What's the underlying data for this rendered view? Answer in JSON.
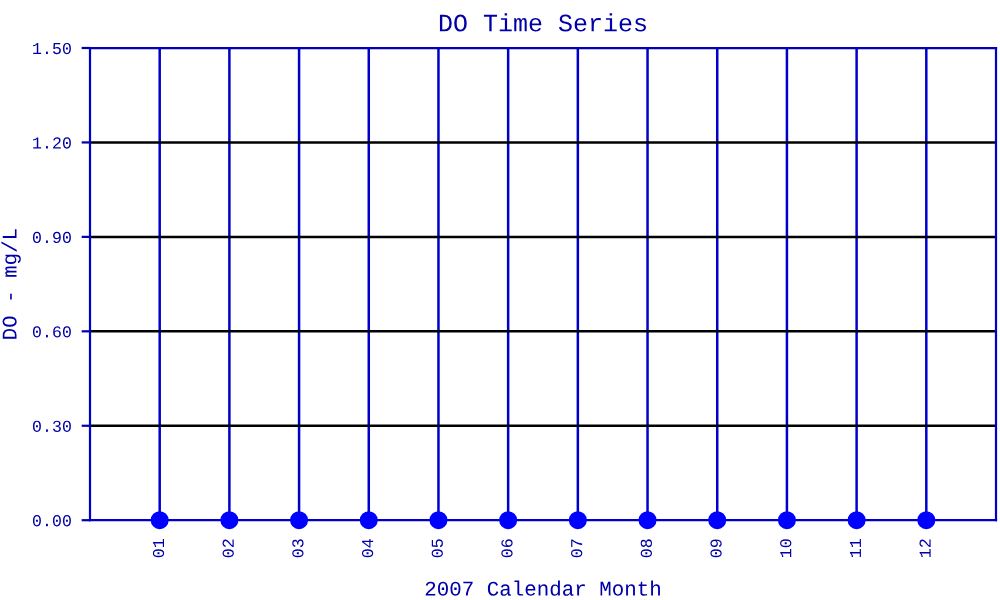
{
  "chart_data": {
    "type": "scatter",
    "title": "DO Time Series",
    "xlabel": "2007 Calendar Month",
    "ylabel": "DO - mg/L",
    "categories": [
      "01",
      "02",
      "03",
      "04",
      "05",
      "06",
      "07",
      "08",
      "09",
      "10",
      "11",
      "12"
    ],
    "series": [
      {
        "color": "#0000ff",
        "values": [
          0,
          0,
          0,
          0,
          0,
          0,
          0,
          0,
          0,
          0,
          0,
          0
        ]
      }
    ],
    "ylim": [
      0,
      1.5
    ],
    "yticks": [
      {
        "value": 0,
        "label": "0.00"
      },
      {
        "value": 0.3,
        "label": "0.30"
      },
      {
        "value": 0.6,
        "label": "0.60"
      },
      {
        "value": 0.9,
        "label": "0.90"
      },
      {
        "value": 1.2,
        "label": "1.20"
      },
      {
        "value": 1.5,
        "label": "1.50"
      }
    ],
    "grid": true,
    "marker": "circle"
  }
}
